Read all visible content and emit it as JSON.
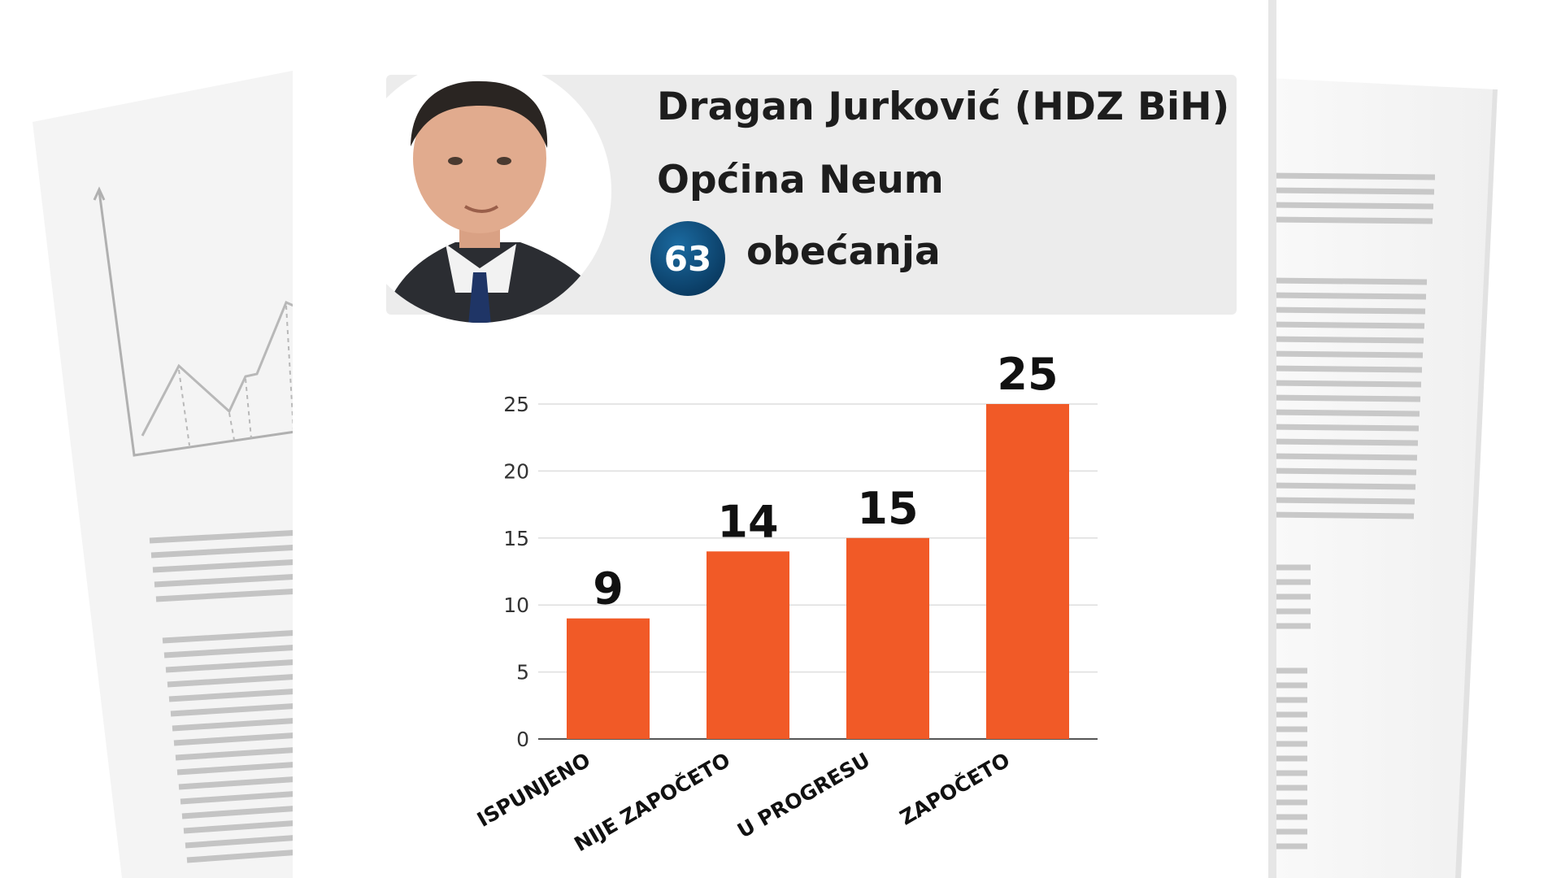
{
  "header": {
    "title": "Dragan Jurković (HDZ BiH)",
    "subtitle": "Općina Neum",
    "promise_count": "63",
    "promise_label": "obećanja",
    "photo_icon": "person-portrait"
  },
  "colors": {
    "bar": "#f15a27",
    "badge": "#0b4a78",
    "header_panel": "#ececec"
  },
  "chart_data": {
    "type": "bar",
    "categories": [
      "ISPUNJENO",
      "NIJE ZAPOČETO",
      "U PROGRESU",
      "ZAPOČETO"
    ],
    "values": [
      9,
      14,
      15,
      25
    ],
    "yticks": [
      0,
      5,
      10,
      15,
      20,
      25
    ],
    "ylim": [
      0,
      25
    ],
    "grid": true,
    "title": "",
    "xlabel": "",
    "ylabel": ""
  }
}
